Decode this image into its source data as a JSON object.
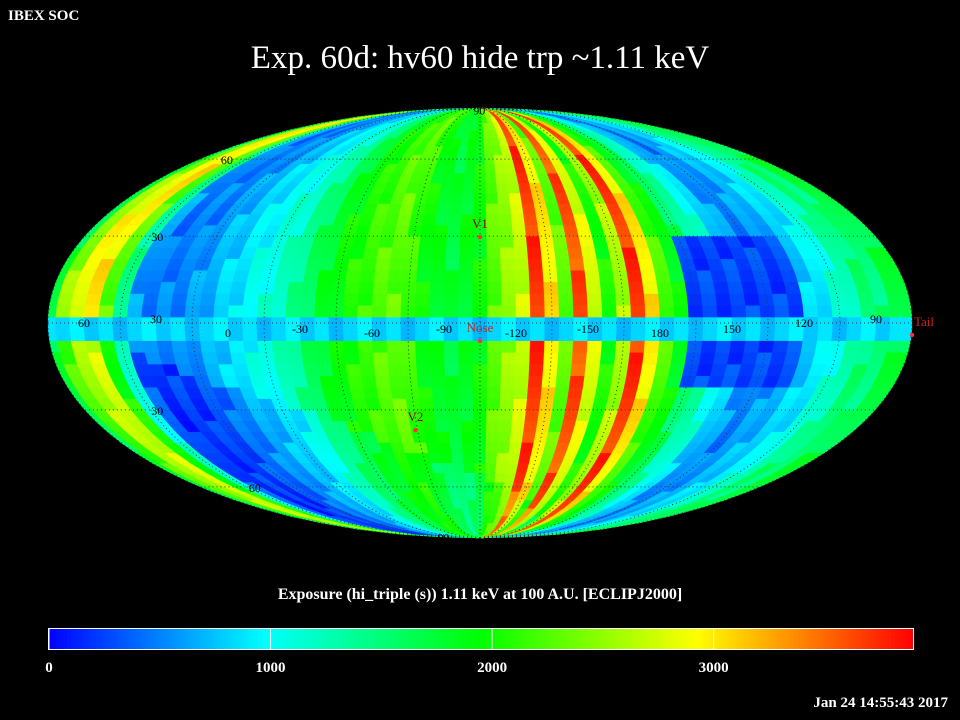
{
  "header": {
    "org": "IBEX SOC",
    "title": "Exp.   60d: hv60 hide trp ~1.11 keV",
    "timestamp": "Jan 24 14:55:43 2017"
  },
  "chart_data": {
    "type": "heatmap",
    "projection": "mollweide",
    "title": "Exp.   60d: hv60 hide trp ~1.11 keV",
    "colorbar_label": "Exposure (hi_triple (s))  1.11 keV at 100 A.U. [ECLIPJ2000]",
    "colorbar_range": [
      0,
      3900
    ],
    "colorbar_ticks": [
      "0",
      "1000",
      "2000",
      "3000"
    ],
    "colormap": [
      "#0000ff",
      "#00ffff",
      "#00ff00",
      "#ffff00",
      "#ff0000"
    ],
    "grid": true,
    "graticule_color": "#333333",
    "longitude_labels": [
      "60",
      "30",
      "0",
      "-30",
      "-60",
      "-90",
      "-120",
      "-150",
      "180",
      "150",
      "120",
      "90"
    ],
    "longitude_label_values": [
      60,
      30,
      0,
      -30,
      -60,
      -90,
      -120,
      -150,
      180,
      150,
      120,
      90
    ],
    "latitude_labels": [
      "90",
      "60",
      "30",
      "30",
      "60",
      "90"
    ],
    "latitude_label_positions": [
      {
        "lat": 88,
        "lon": -102
      },
      {
        "lat": 60,
        "lon": 58
      },
      {
        "lat": 30,
        "lon": 42
      },
      {
        "lat": -30,
        "lon": 42
      },
      {
        "lat": -60,
        "lon": 40
      },
      {
        "lat": -88,
        "lon": 30
      }
    ],
    "markers": [
      {
        "name": "V1",
        "lon": -105,
        "lat": 34
      },
      {
        "name": "Nose",
        "lon": -105,
        "lat": -2
      },
      {
        "name": "V2",
        "lon": -75,
        "lat": -33
      },
      {
        "name": "Tail",
        "lon": 75,
        "lat": 0
      }
    ],
    "marker_color": "#ff3333",
    "label_color": "#000000",
    "exposure_by_longitude": [
      {
        "lon": 72,
        "value": 1900
      },
      {
        "lon": 66,
        "value": 2500
      },
      {
        "lon": 60,
        "value": 2900
      },
      {
        "lon": 54,
        "value": 3000
      },
      {
        "lon": 48,
        "value": 2300
      },
      {
        "lon": 42,
        "value": 1400
      },
      {
        "lon": 36,
        "value": 600
      },
      {
        "lon": 30,
        "value": 450
      },
      {
        "lon": 24,
        "value": 500
      },
      {
        "lon": 18,
        "value": 500
      },
      {
        "lon": 12,
        "value": 600
      },
      {
        "lon": 6,
        "value": 700
      },
      {
        "lon": 0,
        "value": 800
      },
      {
        "lon": -6,
        "value": 900
      },
      {
        "lon": -12,
        "value": 1000
      },
      {
        "lon": -18,
        "value": 1100
      },
      {
        "lon": -24,
        "value": 1200
      },
      {
        "lon": -30,
        "value": 1400
      },
      {
        "lon": -36,
        "value": 1600
      },
      {
        "lon": -42,
        "value": 1800
      },
      {
        "lon": -48,
        "value": 1950
      },
      {
        "lon": -54,
        "value": 2050
      },
      {
        "lon": -60,
        "value": 2150
      },
      {
        "lon": -66,
        "value": 2250
      },
      {
        "lon": -72,
        "value": 2300
      },
      {
        "lon": -78,
        "value": 2150
      },
      {
        "lon": -84,
        "value": 1950
      },
      {
        "lon": -90,
        "value": 1850
      },
      {
        "lon": -96,
        "value": 1750
      },
      {
        "lon": -102,
        "value": 1850
      },
      {
        "lon": -108,
        "value": 1950
      },
      {
        "lon": -114,
        "value": 2300
      },
      {
        "lon": -120,
        "value": 2500
      },
      {
        "lon": -126,
        "value": 2700
      },
      {
        "lon": -132,
        "value": 3700
      },
      {
        "lon": -138,
        "value": 3000
      },
      {
        "lon": -144,
        "value": 2300
      },
      {
        "lon": -150,
        "value": 3600
      },
      {
        "lon": -156,
        "value": 2800
      },
      {
        "lon": -162,
        "value": 2000
      },
      {
        "lon": -168,
        "value": 2600
      },
      {
        "lon": -174,
        "value": 3700
      },
      {
        "lon": -180,
        "value": 3000
      },
      {
        "lon": 174,
        "value": 2200
      },
      {
        "lon": 168,
        "value": 1900
      },
      {
        "lon": 162,
        "value": 1600
      },
      {
        "lon": 156,
        "value": 1300
      },
      {
        "lon": 150,
        "value": 1100
      },
      {
        "lon": 144,
        "value": 800
      },
      {
        "lon": 138,
        "value": 600
      },
      {
        "lon": 132,
        "value": 500
      },
      {
        "lon": 126,
        "value": 600
      },
      {
        "lon": 120,
        "value": 700
      },
      {
        "lon": 114,
        "value": 800
      },
      {
        "lon": 108,
        "value": 900
      },
      {
        "lon": 102,
        "value": 1100
      },
      {
        "lon": 96,
        "value": 1300
      },
      {
        "lon": 90,
        "value": 1500
      },
      {
        "lon": 84,
        "value": 1500
      },
      {
        "lon": 78,
        "value": 1700
      }
    ],
    "equatorial_band_value": 700,
    "equatorial_band_lat": [
      -4,
      4
    ],
    "low_region": {
      "lon_min": 120,
      "lon_max": 162,
      "lat_min": -20,
      "lat_max": 30,
      "value": 250
    }
  }
}
